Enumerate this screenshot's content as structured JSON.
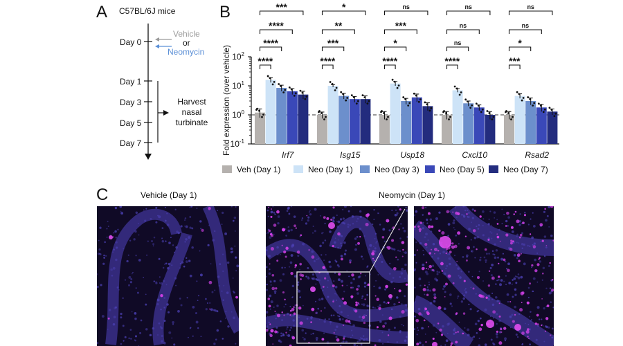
{
  "panelA": {
    "letter": "A",
    "title": "C57BL/6J mice",
    "treatment_vehicle": "Vehicle",
    "treatment_or": "or",
    "treatment_neomycin": "Neomycin",
    "days": [
      "Day 0",
      "Day 1",
      "Day 3",
      "Day 5",
      "Day 7"
    ],
    "harvest_lines": [
      "Harvest",
      "nasal",
      "turbinate"
    ],
    "colors": {
      "vehicle": "#9a9a9a",
      "neomycin": "#5b8fd6"
    }
  },
  "panelB": {
    "letter": "B"
  },
  "panelC": {
    "letter": "C",
    "vehicle_title": "Vehicle (Day 1)",
    "neomycin_title": "Neomycin (Day 1)"
  },
  "chart_data": {
    "type": "bar",
    "scale": "log10",
    "ylabel": "Fold expression (over vehicle)",
    "ylim": [
      0.1,
      100
    ],
    "yticks": [
      {
        "base": "10",
        "exp": "-1"
      },
      {
        "base": "10",
        "exp": "0"
      },
      {
        "base": "10",
        "exp": "1"
      },
      {
        "base": "10",
        "exp": "2"
      }
    ],
    "reference_line": 1,
    "categories": [
      "Irf7",
      "Isg15",
      "Usp18",
      "Cxcl10",
      "Rsad2"
    ],
    "series": [
      {
        "name": "Veh (Day 1)",
        "color": "#b5b1ae",
        "values": [
          1.2,
          1.0,
          1.0,
          1.0,
          1.0
        ],
        "errors": [
          0.4,
          0.25,
          0.3,
          0.3,
          0.3
        ]
      },
      {
        "name": "Neo (Day 1)",
        "color": "#cde3f7",
        "values": [
          16,
          10,
          12,
          7,
          4.5
        ],
        "errors": [
          3,
          1.0,
          2,
          1,
          0.8
        ]
      },
      {
        "name": "Neo (Day 3)",
        "color": "#6c8fcc",
        "values": [
          8.5,
          4.5,
          3.0,
          2.5,
          3.0
        ],
        "errors": [
          2,
          1.0,
          0.7,
          0.5,
          0.8
        ]
      },
      {
        "name": "Neo (Day 5)",
        "color": "#3a48b8",
        "values": [
          6.5,
          3.5,
          4.0,
          1.8,
          1.8
        ],
        "errors": [
          1.5,
          0.8,
          1.2,
          0.4,
          0.5
        ]
      },
      {
        "name": "Neo (Day 7)",
        "color": "#232c7e",
        "values": [
          5.0,
          3.5,
          2.0,
          1.0,
          1.3
        ],
        "errors": [
          1.5,
          1.0,
          0.6,
          0.3,
          0.3
        ]
      }
    ],
    "significance": [
      {
        "gene": "Irf7",
        "labels": [
          "***",
          "****",
          "****",
          "****"
        ]
      },
      {
        "gene": "Isg15",
        "labels": [
          "*",
          "**",
          "***",
          "****"
        ]
      },
      {
        "gene": "Usp18",
        "labels": [
          "ns",
          "***",
          "*",
          "****"
        ]
      },
      {
        "gene": "Cxcl10",
        "labels": [
          "ns",
          "ns",
          "ns",
          "****"
        ]
      },
      {
        "gene": "Rsad2",
        "labels": [
          "ns",
          "ns",
          "*",
          "***"
        ]
      }
    ]
  }
}
